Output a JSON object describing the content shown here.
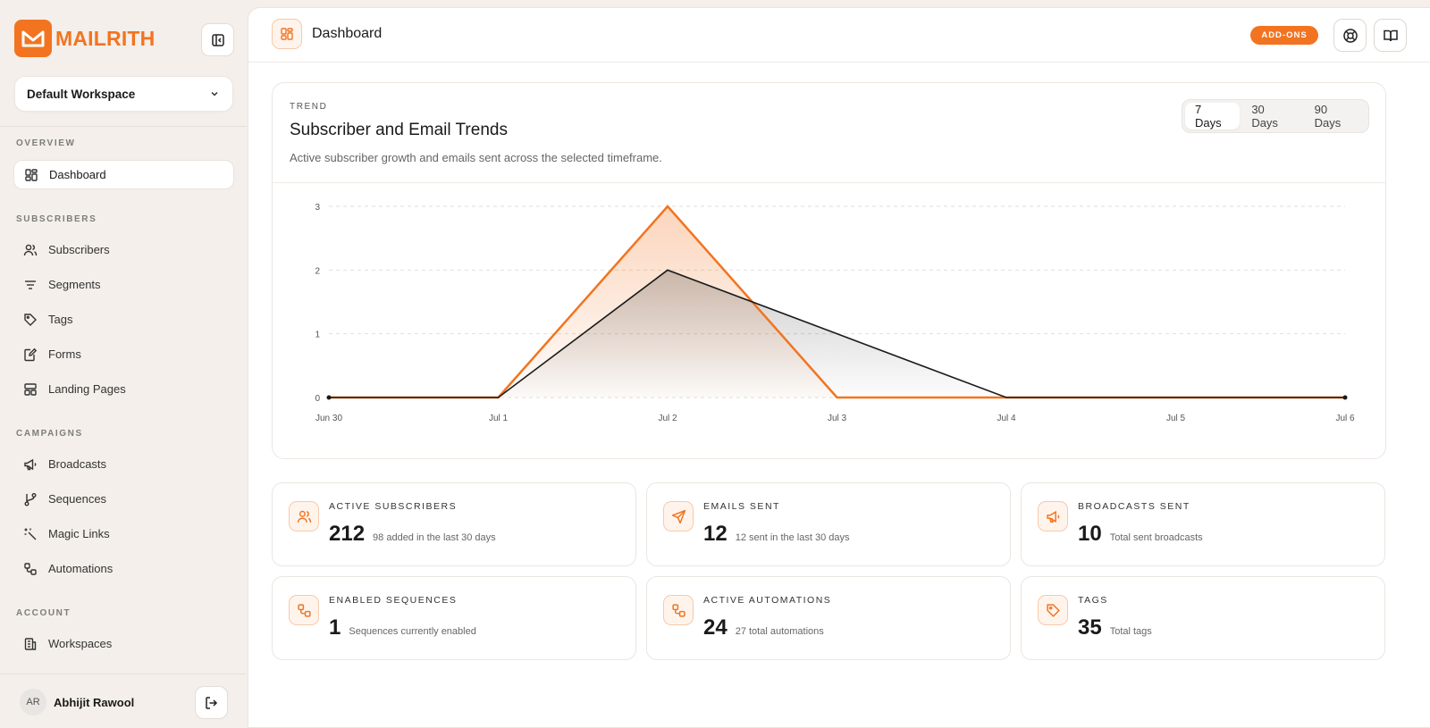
{
  "brand": {
    "name": "MAILRITH",
    "accent": "#f27420"
  },
  "workspace": {
    "selected": "Default Workspace"
  },
  "sidebar": {
    "sections": [
      {
        "label": "OVERVIEW",
        "items": [
          {
            "label": "Dashboard",
            "icon": "dashboard-icon",
            "active": true
          }
        ]
      },
      {
        "label": "SUBSCRIBERS",
        "items": [
          {
            "label": "Subscribers",
            "icon": "users-icon"
          },
          {
            "label": "Segments",
            "icon": "filter-icon"
          },
          {
            "label": "Tags",
            "icon": "tag-icon"
          },
          {
            "label": "Forms",
            "icon": "form-icon"
          },
          {
            "label": "Landing Pages",
            "icon": "layout-icon"
          }
        ]
      },
      {
        "label": "CAMPAIGNS",
        "items": [
          {
            "label": "Broadcasts",
            "icon": "megaphone-icon"
          },
          {
            "label": "Sequences",
            "icon": "git-branch-icon"
          },
          {
            "label": "Magic Links",
            "icon": "magic-wand-icon"
          },
          {
            "label": "Automations",
            "icon": "workflow-icon"
          }
        ]
      },
      {
        "label": "ACCOUNT",
        "items": [
          {
            "label": "Workspaces",
            "icon": "building-icon"
          }
        ]
      }
    ]
  },
  "user": {
    "initials": "AR",
    "name": "Abhijit Rawool"
  },
  "header": {
    "title": "Dashboard",
    "addons_label": "ADD-ONS"
  },
  "trend": {
    "eyebrow": "TREND",
    "title": "Subscriber and Email Trends",
    "subtitle": "Active subscriber growth and emails sent across the selected timeframe.",
    "ranges": [
      "7 Days",
      "30 Days",
      "90 Days"
    ],
    "selected_range": "7 Days"
  },
  "chart_data": {
    "type": "area",
    "x": [
      "Jun 30",
      "Jul 1",
      "Jul 2",
      "Jul 3",
      "Jul 4",
      "Jul 5",
      "Jul 6"
    ],
    "series": [
      {
        "color": "#f27420",
        "values": [
          0,
          0,
          3,
          0,
          0,
          0,
          0
        ]
      },
      {
        "color": "#1a1a1a",
        "values": [
          0,
          0,
          2,
          1,
          0,
          0,
          0
        ]
      }
    ],
    "yticks": [
      0,
      1,
      2,
      3
    ],
    "ylim": [
      0,
      3
    ],
    "grid": true
  },
  "stats": [
    {
      "label": "ACTIVE SUBSCRIBERS",
      "value": "212",
      "note": "98 added in the last 30 days",
      "icon": "users-icon"
    },
    {
      "label": "EMAILS SENT",
      "value": "12",
      "note": "12 sent in the last 30 days",
      "icon": "send-icon"
    },
    {
      "label": "BROADCASTS SENT",
      "value": "10",
      "note": "Total sent broadcasts",
      "icon": "megaphone-icon"
    },
    {
      "label": "ENABLED SEQUENCES",
      "value": "1",
      "note": "Sequences currently enabled",
      "icon": "workflow-icon"
    },
    {
      "label": "ACTIVE AUTOMATIONS",
      "value": "24",
      "note": "27 total automations",
      "icon": "workflow-icon"
    },
    {
      "label": "TAGS",
      "value": "35",
      "note": "Total tags",
      "icon": "tag-icon"
    }
  ]
}
